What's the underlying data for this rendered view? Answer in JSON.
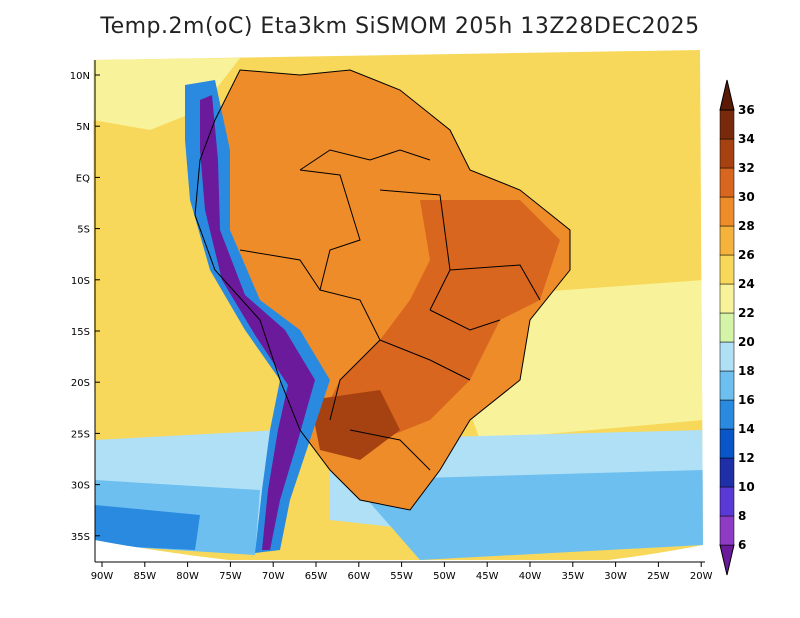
{
  "title": "Temp.2m(oC) Eta3km SiSMOM 205h 13Z28DEC2025",
  "y_ticks": [
    "10N",
    "5N",
    "EQ",
    "5S",
    "10S",
    "15S",
    "20S",
    "25S",
    "30S",
    "35S"
  ],
  "x_ticks": [
    "90W",
    "85W",
    "80W",
    "75W",
    "70W",
    "65W",
    "60W",
    "55W",
    "50W",
    "45W",
    "40W",
    "35W",
    "30W",
    "25W",
    "20W"
  ],
  "colorbar": {
    "labels": [
      "6",
      "8",
      "10",
      "12",
      "14",
      "16",
      "18",
      "20",
      "22",
      "24",
      "26",
      "28",
      "30",
      "32",
      "34",
      "36"
    ],
    "colors": [
      "#6a1a9a",
      "#8e3cc4",
      "#5a3ad6",
      "#1e2fa8",
      "#0a55c8",
      "#2a8ae0",
      "#6dbff0",
      "#b0e0f5",
      "#d4f5a8",
      "#f8f39a",
      "#f8d85a",
      "#f5b23c",
      "#ef8c2a",
      "#d8661e",
      "#a64212",
      "#7a2a0c",
      "#5a1a06"
    ]
  },
  "colors": {
    "ocean_warm": "#f8d85a",
    "ocean_cool": "#f8f39a",
    "south_cool": "#6dbff0",
    "land_hot": "#d8661e",
    "land_warm": "#ef8c2a",
    "andes_cold": "#6a1a9a",
    "andes_blue": "#2a8ae0",
    "border": "#000000"
  }
}
